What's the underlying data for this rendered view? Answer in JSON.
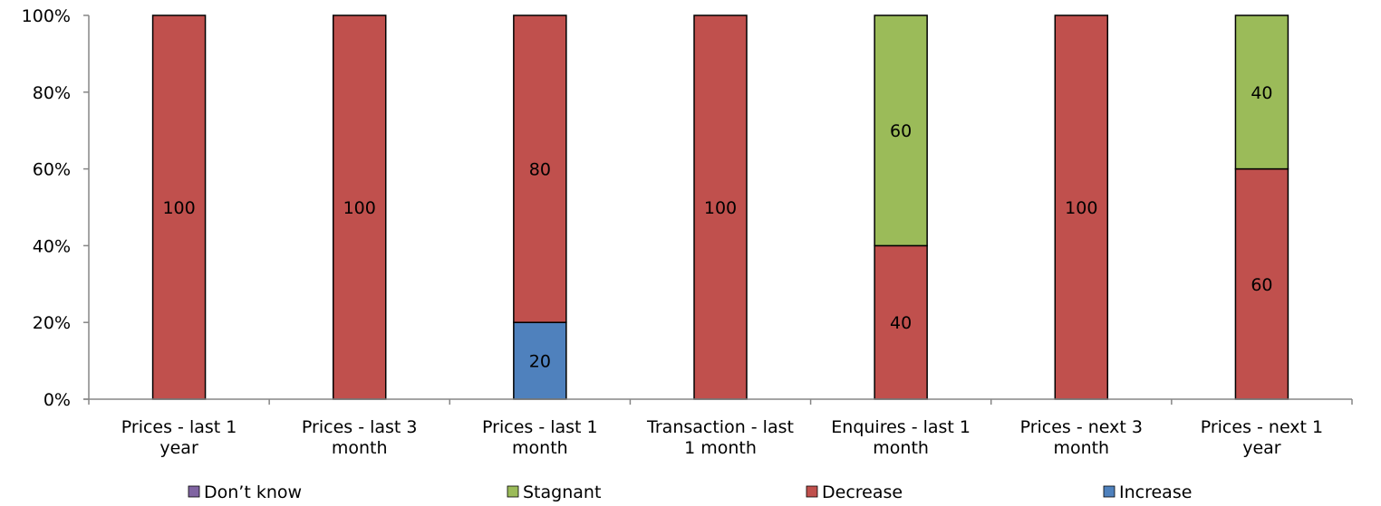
{
  "chart_data": {
    "type": "bar",
    "stacked": true,
    "normalized_percent": true,
    "categories": [
      [
        "Prices - last 1",
        "year"
      ],
      [
        "Prices - last 3",
        "month"
      ],
      [
        "Prices - last 1",
        "month"
      ],
      [
        "Transaction - last",
        "1 month"
      ],
      [
        "Enquires - last 1",
        "month"
      ],
      [
        "Prices - next 3",
        "month"
      ],
      [
        "Prices - next 1",
        "year"
      ]
    ],
    "series": [
      {
        "name": "Increase",
        "color": "#4f81bd",
        "values": [
          0,
          0,
          20,
          0,
          0,
          0,
          0
        ]
      },
      {
        "name": "Decrease",
        "color": "#c0504d",
        "values": [
          100,
          100,
          80,
          100,
          40,
          100,
          60
        ]
      },
      {
        "name": "Stagnant",
        "color": "#9bbb59",
        "values": [
          0,
          0,
          0,
          0,
          60,
          0,
          40
        ]
      },
      {
        "name": "Don’t know",
        "color": "#8064a2",
        "values": [
          0,
          0,
          0,
          0,
          0,
          0,
          0
        ]
      }
    ],
    "legend_order": [
      "Don’t know",
      "Stagnant",
      "Decrease",
      "Increase"
    ],
    "yticks": [
      "0%",
      "20%",
      "40%",
      "60%",
      "80%",
      "100%"
    ],
    "ylim": [
      0,
      100
    ],
    "legend_position": "bottom",
    "grid": false
  }
}
